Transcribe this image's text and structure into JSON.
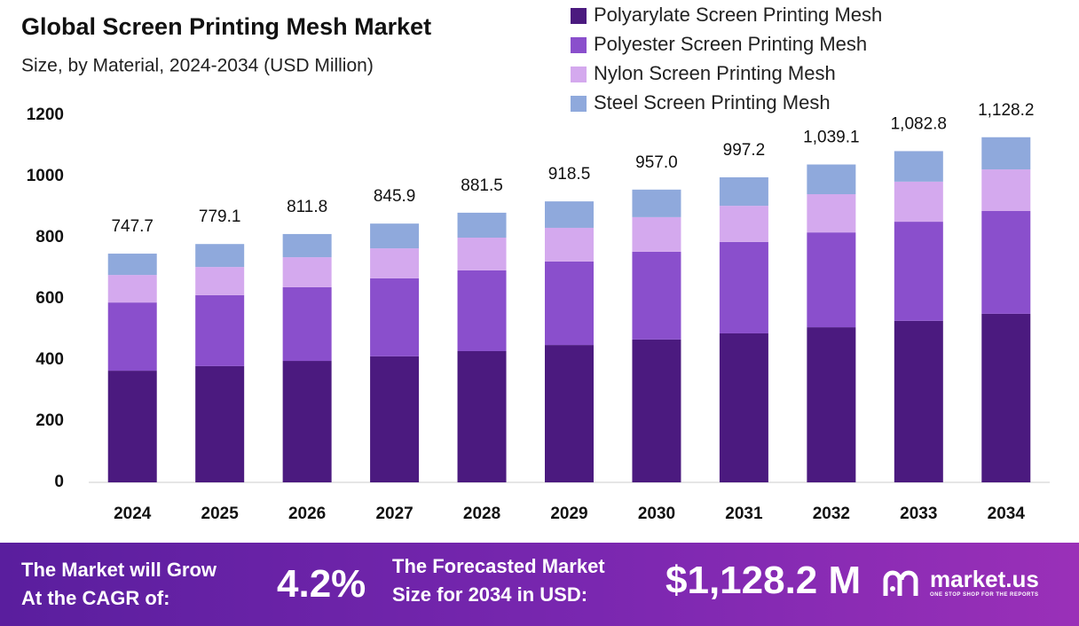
{
  "chart_data": {
    "type": "stacked-bar",
    "title": "Global Screen Printing Mesh Market",
    "subtitle": "Size, by Material, 2024-2034 (USD Million)",
    "categories": [
      "2024",
      "2025",
      "2026",
      "2027",
      "2028",
      "2029",
      "2030",
      "2031",
      "2032",
      "2033",
      "2034"
    ],
    "series": [
      {
        "name": "Polyarylate Screen Printing Mesh",
        "color": "#4b1a7f",
        "values": [
          365,
          380,
          397,
          412,
          429,
          449,
          467,
          487,
          507,
          528,
          551
        ]
      },
      {
        "name": "Polyester Screen Printing Mesh",
        "color": "#8a4fcc",
        "values": [
          223,
          232,
          241,
          255,
          264,
          273,
          287,
          299,
          310,
          324,
          336
        ]
      },
      {
        "name": "Nylon Screen Printing Mesh",
        "color": "#d4a9ee",
        "values": [
          90,
          92,
          98,
          98,
          107,
          110,
          113,
          118,
          125,
          131,
          136
        ]
      },
      {
        "name": "Steel Screen Printing Mesh",
        "color": "#8fa9dc",
        "values": [
          69.7,
          75.1,
          75.8,
          80.9,
          81.5,
          86.5,
          90,
          93.2,
          97.1,
          99.8,
          105.2
        ]
      }
    ],
    "totals": [
      747.7,
      779.1,
      811.8,
      845.9,
      881.5,
      918.5,
      957.0,
      997.2,
      1039.1,
      1082.8,
      1128.2
    ],
    "total_labels": [
      "747.7",
      "779.1",
      "811.8",
      "845.9",
      "881.5",
      "918.5",
      "957.0",
      "997.2",
      "1,039.1",
      "1,082.8",
      "1,128.2"
    ],
    "ylim": [
      0,
      1200
    ],
    "yticks": [
      0,
      200,
      400,
      600,
      800,
      1000,
      1200
    ],
    "grid": false,
    "legend": "top-right"
  },
  "footer": {
    "cagr_text_1": "The Market will Grow",
    "cagr_text_2": "At the CAGR of:",
    "cagr": "4.2%",
    "size_text_1": "The Forecasted Market",
    "size_text_2": "Size for 2034 in USD:",
    "size": "$1,128.2 M",
    "brand": "market.us",
    "tagline": "ONE STOP SHOP FOR THE REPORTS"
  }
}
